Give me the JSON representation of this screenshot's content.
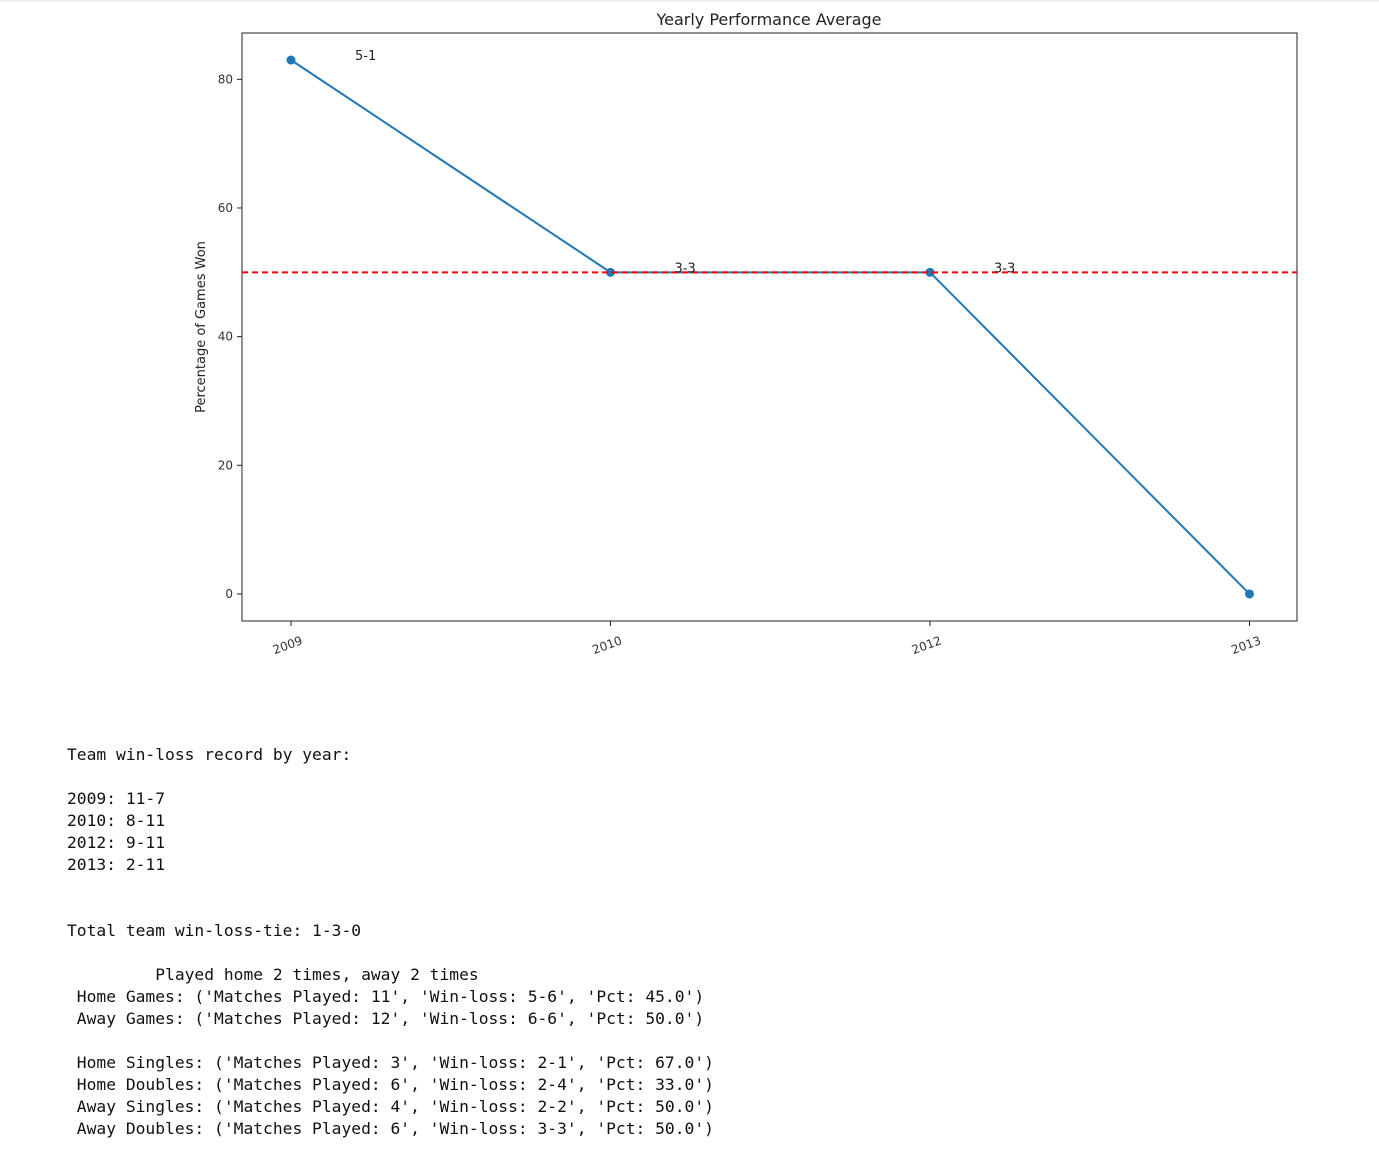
{
  "chart_data": {
    "type": "line",
    "title": "Yearly Performance Average",
    "xlabel": "",
    "ylabel": "Percentage of Games Won",
    "categories": [
      "2009",
      "2010",
      "2012",
      "2013"
    ],
    "series": [
      {
        "values": [
          83,
          50,
          50,
          0
        ],
        "color": "#1f77b4"
      }
    ],
    "annotations": [
      "5-1",
      "3-3",
      "3-3",
      ""
    ],
    "reference_line": {
      "y": 50,
      "color": "#ff0000",
      "style": "dashed"
    },
    "yticks": [
      0,
      20,
      40,
      60,
      80
    ],
    "ylim": [
      -4.2,
      87.2
    ],
    "grid": false
  },
  "output": {
    "heading": "Team win-loss record by year:",
    "records": [
      "2009: 11-7",
      "2010: 8-11",
      "2012: 9-11",
      "2013: 2-11"
    ],
    "total": "Total team win-loss-tie: 1-3-0",
    "played": "         Played home 2 times, away 2 times",
    "home_games": " Home Games: ('Matches Played: 11', 'Win-loss: 5-6', 'Pct: 45.0')",
    "away_games": " Away Games: ('Matches Played: 12', 'Win-loss: 6-6', 'Pct: 50.0')",
    "home_singles": " Home Singles: ('Matches Played: 3', 'Win-loss: 2-1', 'Pct: 67.0')",
    "home_doubles": " Home Doubles: ('Matches Played: 6', 'Win-loss: 2-4', 'Pct: 33.0')",
    "away_singles": " Away Singles: ('Matches Played: 4', 'Win-loss: 2-2', 'Pct: 50.0')",
    "away_doubles": " Away Doubles: ('Matches Played: 6', 'Win-loss: 3-3', 'Pct: 50.0')"
  }
}
